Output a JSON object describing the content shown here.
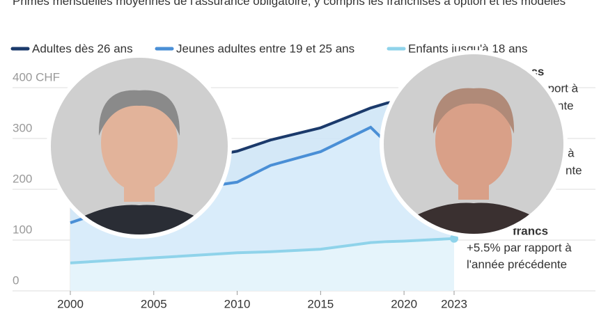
{
  "chart_data": {
    "type": "area",
    "title": "Primes mensuelles moyennes de l'assurance obligatoire, y compris les franchises à option et les modèles",
    "x": [
      2000,
      2005,
      2010,
      2012,
      2015,
      2018,
      2019,
      2020,
      2023
    ],
    "series": [
      {
        "name": "Adultes dès 26 ans",
        "color": "#1b3a6b",
        "fill": "#cfe5f6",
        "values": [
          175,
          245,
          275,
          297,
          321,
          360,
          370,
          375,
          400
        ]
      },
      {
        "name": "Jeunes adultes entre 19 et 25 ans",
        "color": "#4a8fd6",
        "fill": "#d9ecf9",
        "values": [
          134,
          190,
          214,
          247,
          274,
          322,
          290,
          290,
          315
        ]
      },
      {
        "name": "Enfants jusqu'à 18 ans",
        "color": "#8fd3ea",
        "fill": "#e6f5fb",
        "values": [
          55,
          65,
          75,
          77,
          82,
          95,
          97,
          98,
          103
        ]
      }
    ],
    "xlim": [
      2000,
      2023
    ],
    "xticks": [
      2000,
      2005,
      2010,
      2015,
      2020,
      2023
    ],
    "ylim": [
      0,
      400
    ],
    "yticks": [
      0,
      100,
      200,
      {
        "value": 400,
        "label": "400 CHF"
      },
      300
    ],
    "grid": true,
    "annotations": [
      "ncs",
      "rapport à",
      "nte",
      "rt à",
      "nte",
      "francs",
      "+5.5% par rapport à",
      "l'année précédente"
    ]
  }
}
